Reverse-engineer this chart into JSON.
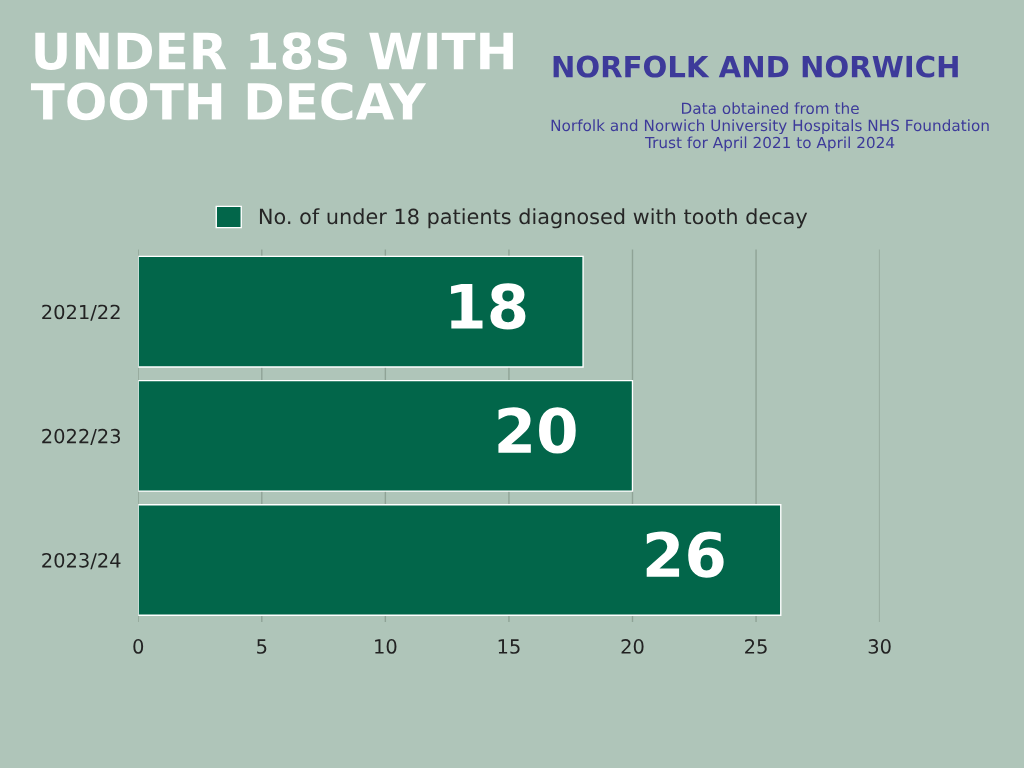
{
  "chart_data": {
    "type": "bar",
    "orientation": "horizontal",
    "title": "UNDER 18S WITH\nTOOTH DECAY",
    "subtitle": "NORFOLK AND NORWICH",
    "annotations": [
      "Data obtained from the\nNorfolk and Norwich University Hospitals NHS Foundation\nTrust for April 2021 to April 2024"
    ],
    "categories": [
      "2021/22",
      "2022/23",
      "2023/24"
    ],
    "series": [
      {
        "name": "No. of under 18 patients diagnosed with tooth decay",
        "color": "#02664a",
        "values": [
          18,
          20,
          26
        ]
      }
    ],
    "xlim": [
      0,
      30
    ],
    "xticks": [
      0,
      5,
      10,
      15,
      20,
      25,
      30
    ],
    "grid": "x",
    "legend": "top",
    "data_labels": true
  }
}
